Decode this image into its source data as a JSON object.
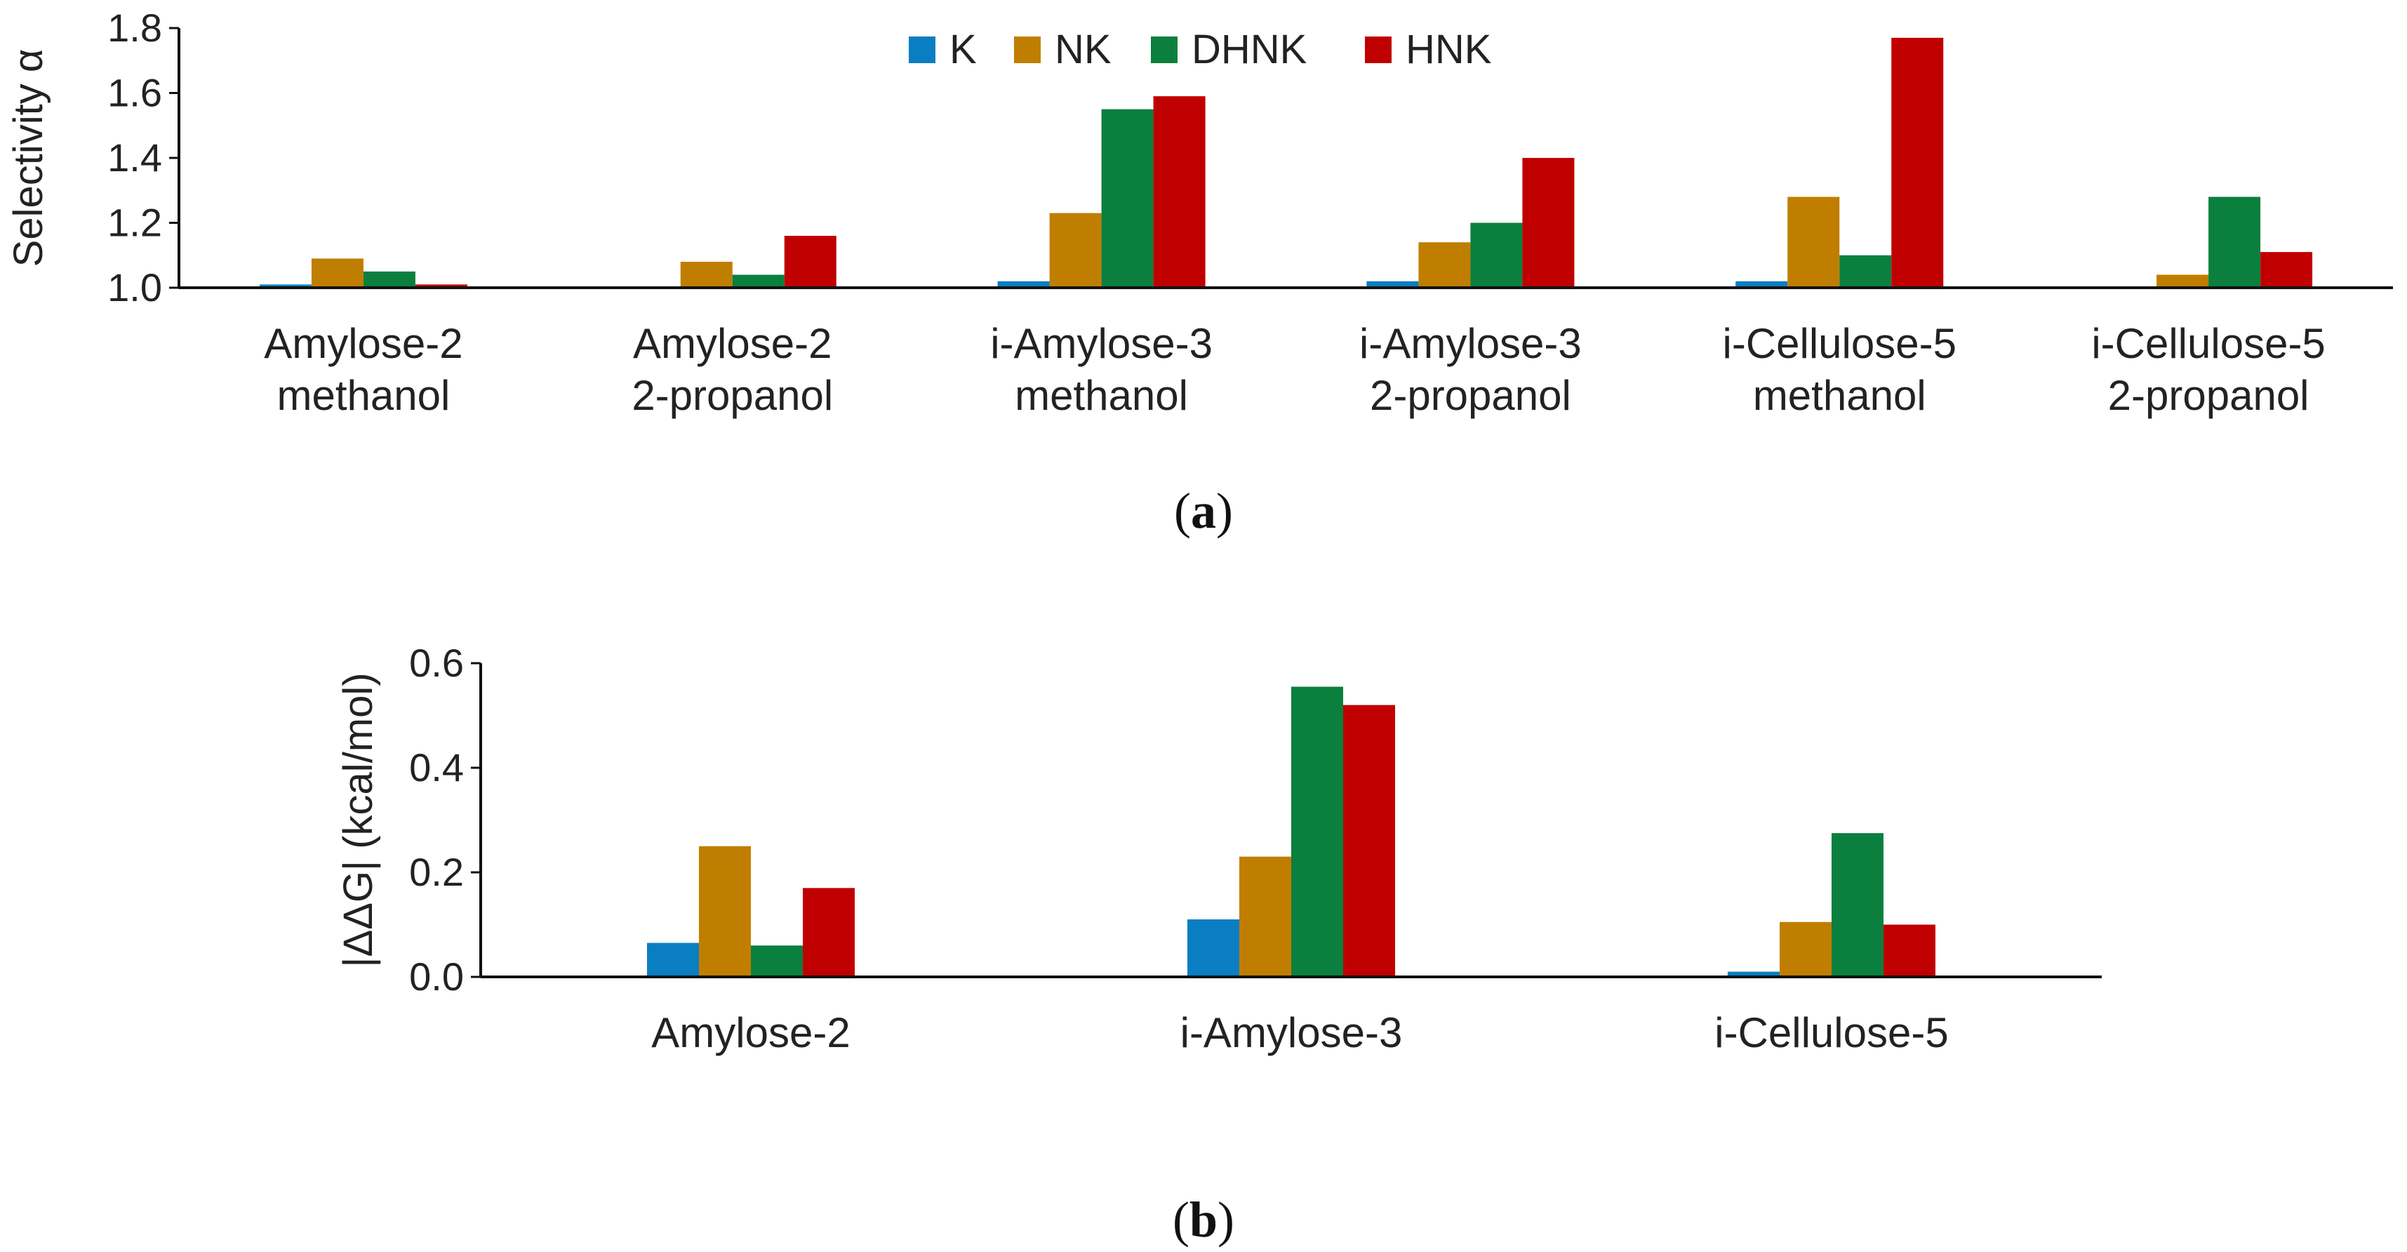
{
  "colors": {
    "K": "#0a7ec2",
    "NK": "#c07e00",
    "DHNK": "#0b7f3e",
    "HNK": "#c00000",
    "axis": "#111111"
  },
  "legend": [
    "K",
    "NK",
    "DHNK",
    "HNK"
  ],
  "panels": {
    "a": {
      "open": "(",
      "letter": "a",
      "close": ")"
    },
    "b": {
      "open": "(",
      "letter": "b",
      "close": ")"
    }
  },
  "chart_data": [
    {
      "type": "bar",
      "ylabel": "Selectivity α",
      "ylim": [
        1.0,
        1.8
      ],
      "yticks": [
        "1.0",
        "1.2",
        "1.4",
        "1.6",
        "1.8"
      ],
      "categories": [
        [
          "Amylose-2",
          "methanol"
        ],
        [
          "Amylose-2",
          "2-propanol"
        ],
        [
          "i-Amylose-3",
          "methanol"
        ],
        [
          "i-Amylose-3",
          "2-propanol"
        ],
        [
          "i-Cellulose-5",
          "methanol"
        ],
        [
          "i-Cellulose-5",
          "2-propanol"
        ]
      ],
      "series": [
        {
          "name": "K",
          "values": [
            1.01,
            1.0,
            1.02,
            1.02,
            1.02,
            1.0
          ]
        },
        {
          "name": "NK",
          "values": [
            1.09,
            1.08,
            1.23,
            1.14,
            1.28,
            1.04
          ]
        },
        {
          "name": "DHNK",
          "values": [
            1.05,
            1.04,
            1.55,
            1.2,
            1.1,
            1.28
          ]
        },
        {
          "name": "HNK",
          "values": [
            1.01,
            1.16,
            1.59,
            1.4,
            1.77,
            1.11
          ]
        }
      ]
    },
    {
      "type": "bar",
      "ylabel": "|ΔΔG| (kcal/mol)",
      "ylim": [
        0.0,
        0.6
      ],
      "yticks": [
        "0.0",
        "0.2",
        "0.4",
        "0.6"
      ],
      "categories": [
        [
          "Amylose-2"
        ],
        [
          "i-Amylose-3"
        ],
        [
          "i-Cellulose-5"
        ]
      ],
      "series": [
        {
          "name": "K",
          "values": [
            0.065,
            0.11,
            0.01
          ]
        },
        {
          "name": "NK",
          "values": [
            0.25,
            0.23,
            0.105
          ]
        },
        {
          "name": "DHNK",
          "values": [
            0.06,
            0.555,
            0.275
          ]
        },
        {
          "name": "HNK",
          "values": [
            0.17,
            0.52,
            0.1
          ]
        }
      ]
    }
  ]
}
